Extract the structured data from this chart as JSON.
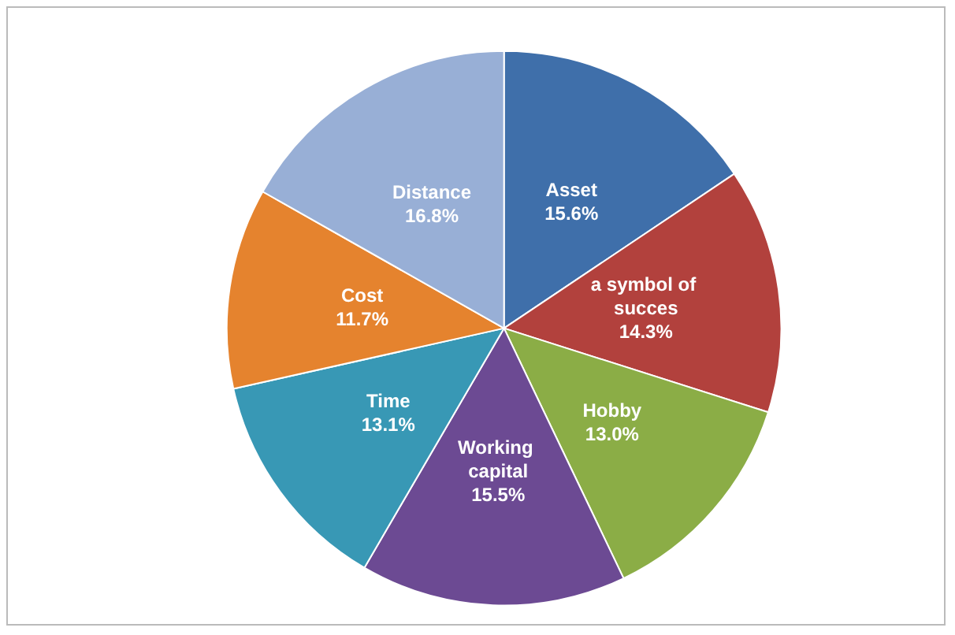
{
  "chart_data": {
    "type": "pie",
    "categories": [
      "Asset",
      "a symbol of succes",
      "Hobby",
      "Working capital",
      "Time",
      "Cost",
      "Distance"
    ],
    "values": [
      15.6,
      14.3,
      13.0,
      15.5,
      13.1,
      11.7,
      16.8
    ],
    "colors": [
      "#3f6faa",
      "#b2413d",
      "#8bad46",
      "#6c4a93",
      "#3898b5",
      "#e5832e",
      "#98afd6"
    ],
    "value_labels": [
      "15.6%",
      "14.3%",
      "13.0%",
      "15.5%",
      "13.1%",
      "11.7%",
      "16.8%"
    ],
    "legend": false
  }
}
